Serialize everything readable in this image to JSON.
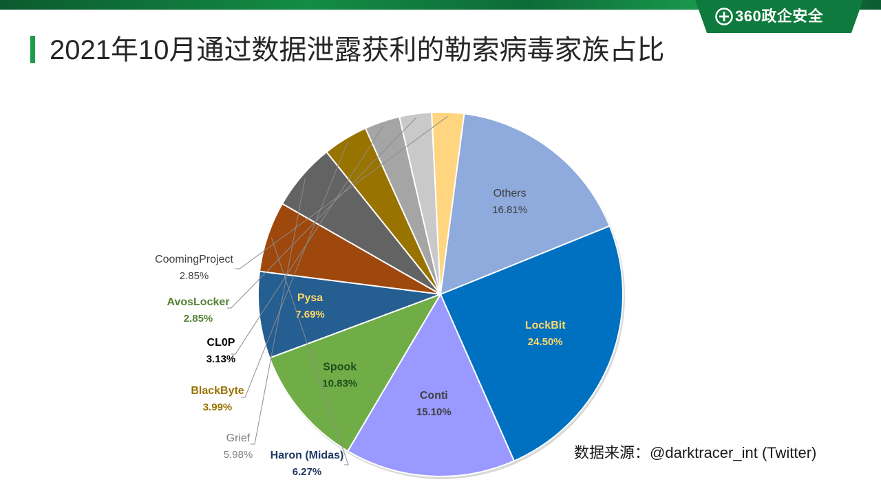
{
  "header": {
    "brand_text": "360政企安全",
    "logo_icon": "plus-circle-logo-icon",
    "title": "2021年10月通过数据泄露获利的勒索病毒家族占比"
  },
  "source_note": "数据来源：@darktracer_int (Twitter)",
  "chart_data": {
    "type": "pie",
    "title": "2021年10月通过数据泄露获利的勒索病毒家族占比",
    "start_angle_deg": -22,
    "direction": "clockwise",
    "slices": [
      {
        "name": "LockBit",
        "value": 24.5,
        "label": "24.50%",
        "color": "#0070c0",
        "label_color": "#ffd966",
        "label_pos": "inside",
        "bold": true
      },
      {
        "name": "Conti",
        "value": 15.1,
        "label": "15.10%",
        "color": "#9999ff",
        "label_color": "#404040",
        "label_pos": "inside",
        "bold": true
      },
      {
        "name": "Spook",
        "value": 10.83,
        "label": "10.83%",
        "color": "#70ad47",
        "label_color": "#1e4e1e",
        "label_pos": "inside",
        "bold": true
      },
      {
        "name": "Pysa",
        "value": 7.69,
        "label": "7.69%",
        "color": "#255e91",
        "label_color": "#ffd966",
        "label_pos": "inside",
        "bold": true
      },
      {
        "name": "Haron (Midas)",
        "value": 6.27,
        "label": "6.27%",
        "color": "#9e480e",
        "label_color": "#1f3864",
        "label_pos": "outside",
        "bold": true
      },
      {
        "name": "Grief",
        "value": 5.98,
        "label": "5.98%",
        "color": "#636363",
        "label_color": "#7f7f7f",
        "label_pos": "outside",
        "bold": false
      },
      {
        "name": "BlackByte",
        "value": 3.99,
        "label": "3.99%",
        "color": "#997300",
        "label_color": "#997300",
        "label_pos": "outside",
        "bold": true
      },
      {
        "name": "CL0P",
        "value": 3.13,
        "label": "3.13%",
        "color": "#a5a5a5",
        "label_color": "#000000",
        "label_pos": "outside",
        "bold": true
      },
      {
        "name": "AvosLocker",
        "value": 2.85,
        "label": "2.85%",
        "color": "#c9c9c9",
        "label_color": "#548235",
        "label_pos": "outside",
        "bold": true
      },
      {
        "name": "CoomingProject",
        "value": 2.85,
        "label": "2.85%",
        "color": "#ffd580",
        "label_color": "#404040",
        "label_pos": "outside",
        "bold": false
      },
      {
        "name": "Others",
        "value": 16.81,
        "label": "16.81%",
        "color": "#8faadc",
        "label_color": "#404040",
        "label_pos": "inside",
        "bold": false
      }
    ],
    "legend": "none"
  }
}
